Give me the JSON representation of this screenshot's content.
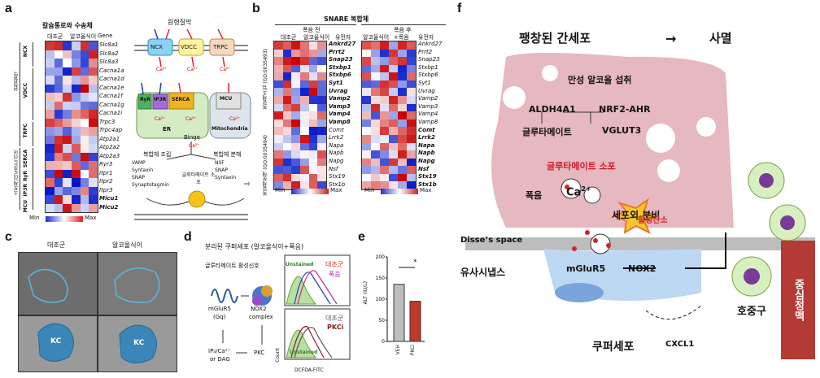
{
  "panels": {
    "a": "a",
    "b": "b",
    "c": "c",
    "d": "d",
    "e": "e",
    "f": "f"
  },
  "a": {
    "heatmap_title": "칼슘통로와 수송체",
    "col1": "대조군",
    "col2": "알코올식이",
    "gene_col": "Gene",
    "genes": [
      "Slc8a1",
      "Slc8a2",
      "Slc8a3",
      "Cacna1a",
      "Cacna1d",
      "Cacna1e",
      "Cacna1f",
      "Cacna1g",
      "Cacna1i",
      "Trpc3",
      "Trpc4ap",
      "Atp2a1",
      "Atp2a2",
      "Atp2a3",
      "Ryr3",
      "Itpr1",
      "Itpr2",
      "Itpr3",
      "Micu1",
      "Micu2"
    ],
    "bold_genes": [
      "Micu1",
      "Micu2"
    ],
    "groups": [
      "NCX",
      "VDCC",
      "TRPC",
      "SERCA",
      "RyR",
      "IP3R",
      "MCU"
    ],
    "group_membrane": "원형질막",
    "group_er": "소포체/미토콘드리아",
    "legend_min": "Min",
    "legend_max": "Max",
    "diagram_title": "원형질막",
    "ncx": "NCX",
    "vdcc": "VDCC",
    "trpc": "TRPC",
    "ryr": "RyR",
    "ip3r": "IP3R",
    "serca": "SERCA",
    "mcu": "MCU",
    "ca": "Ca²⁺",
    "er": "ER",
    "mito": "Mitochondria",
    "binge": "Binge",
    "assembly_title": "복합체 조립",
    "assembly_items": [
      "VAMP",
      "Syntaxin",
      "SNAP",
      "Synaptotagmin"
    ],
    "disassembly_title": "복합체 분해",
    "disassembly_items": [
      "NSF",
      "SNAP",
      "Syntaxin"
    ],
    "vesicle": "글루타메이트 소포"
  },
  "b": {
    "title": "SNARE 복합체",
    "before": "폭음 전",
    "after": "폭음 후",
    "col_ctrl": "대조군",
    "col_alc": "알코올식이",
    "col_alc2": "알코올식이",
    "col_binge": "+폭음",
    "gene_col": "유전자",
    "side1": "복합체조립 (GO:0035493)",
    "side2": "복합체분해 (GO:0035494)",
    "genes": [
      "Ankrd27",
      "Prrt2",
      "Snap23",
      "Stxbp1",
      "Stxbp6",
      "Syt1",
      "Uvrag",
      "Vamp2",
      "Vamp3",
      "Vamp4",
      "Vamp8",
      "Comt",
      "Lrrk2",
      "Napa",
      "Napb",
      "Napg",
      "Nsf",
      "Stx19",
      "Stx1b"
    ],
    "left_bold": [
      "Ankrd27",
      "Prrt2",
      "Snap23",
      "Stxbp1",
      "Stxbp6",
      "Syt1",
      "Uvrag",
      "Vamp2",
      "Vamp3",
      "Vamp4",
      "Vamp8"
    ],
    "right_bold": [
      "Comt",
      "Lrrk2",
      "Napa",
      "Napb",
      "Napg",
      "Nsf",
      "Stx19",
      "Stx1b"
    ],
    "legend_min": "Min",
    "legend_max": "Max"
  },
  "c": {
    "col1": "대조군",
    "col2": "알코올식이",
    "kc": "KC"
  },
  "d": {
    "title": "분리된 쿠퍼세포 (알코올식이+폭음)",
    "activator": "글루타메이트 활성신호",
    "mglur5": "mGluR5",
    "gq": "(Gq)",
    "nox2": "NOX2",
    "complex": "complex",
    "ip3": "IP₃/Ca²⁺",
    "dag": "or DAG",
    "pkc": "PKC",
    "unstained": "Unstained",
    "ctrl": "대조군",
    "binge": "폭음",
    "ctrl2": "대조군",
    "pkci": "PKCi",
    "unstained2": "Unstained",
    "count": "Count",
    "xaxis": "DCFDA-FITC"
  },
  "e": {
    "ylabel": "ALT (IU/L)",
    "sig": "*",
    "categories": [
      "VEH",
      "PKCi"
    ]
  },
  "chart_data": {
    "type": "bar",
    "categories": [
      "VEH",
      "PKCi"
    ],
    "values": [
      135,
      95
    ],
    "ylabel": "ALT (IU/L)",
    "yticks": [
      0,
      50,
      100,
      150,
      200
    ],
    "ylim": [
      0,
      200
    ],
    "colors": [
      "#bdbdbd",
      "#c0392b"
    ]
  },
  "f": {
    "title": "팽창된 간세포",
    "death": "사멸",
    "chronic": "만성 알코올 섭취",
    "aldh": "ALDH4A1",
    "nrf2": "NRF2-AHR",
    "glu": "글루타메이트",
    "vglut": "VGLUT3",
    "vesicle": "글루타메이트 소포",
    "binge": "폭음",
    "ca": "Ca",
    "ca_sup": "2+",
    "exo": "세포외 분비",
    "ros": "활성산소",
    "disse": "Disse’s space",
    "synapse": "유사시냅스",
    "mglur": "mGluR5",
    "nox": "NOX2",
    "kupffer": "쿠퍼세포",
    "cxcl": "CXCL1",
    "neutrophil": "호중구",
    "inflammation": "중심정맥"
  }
}
